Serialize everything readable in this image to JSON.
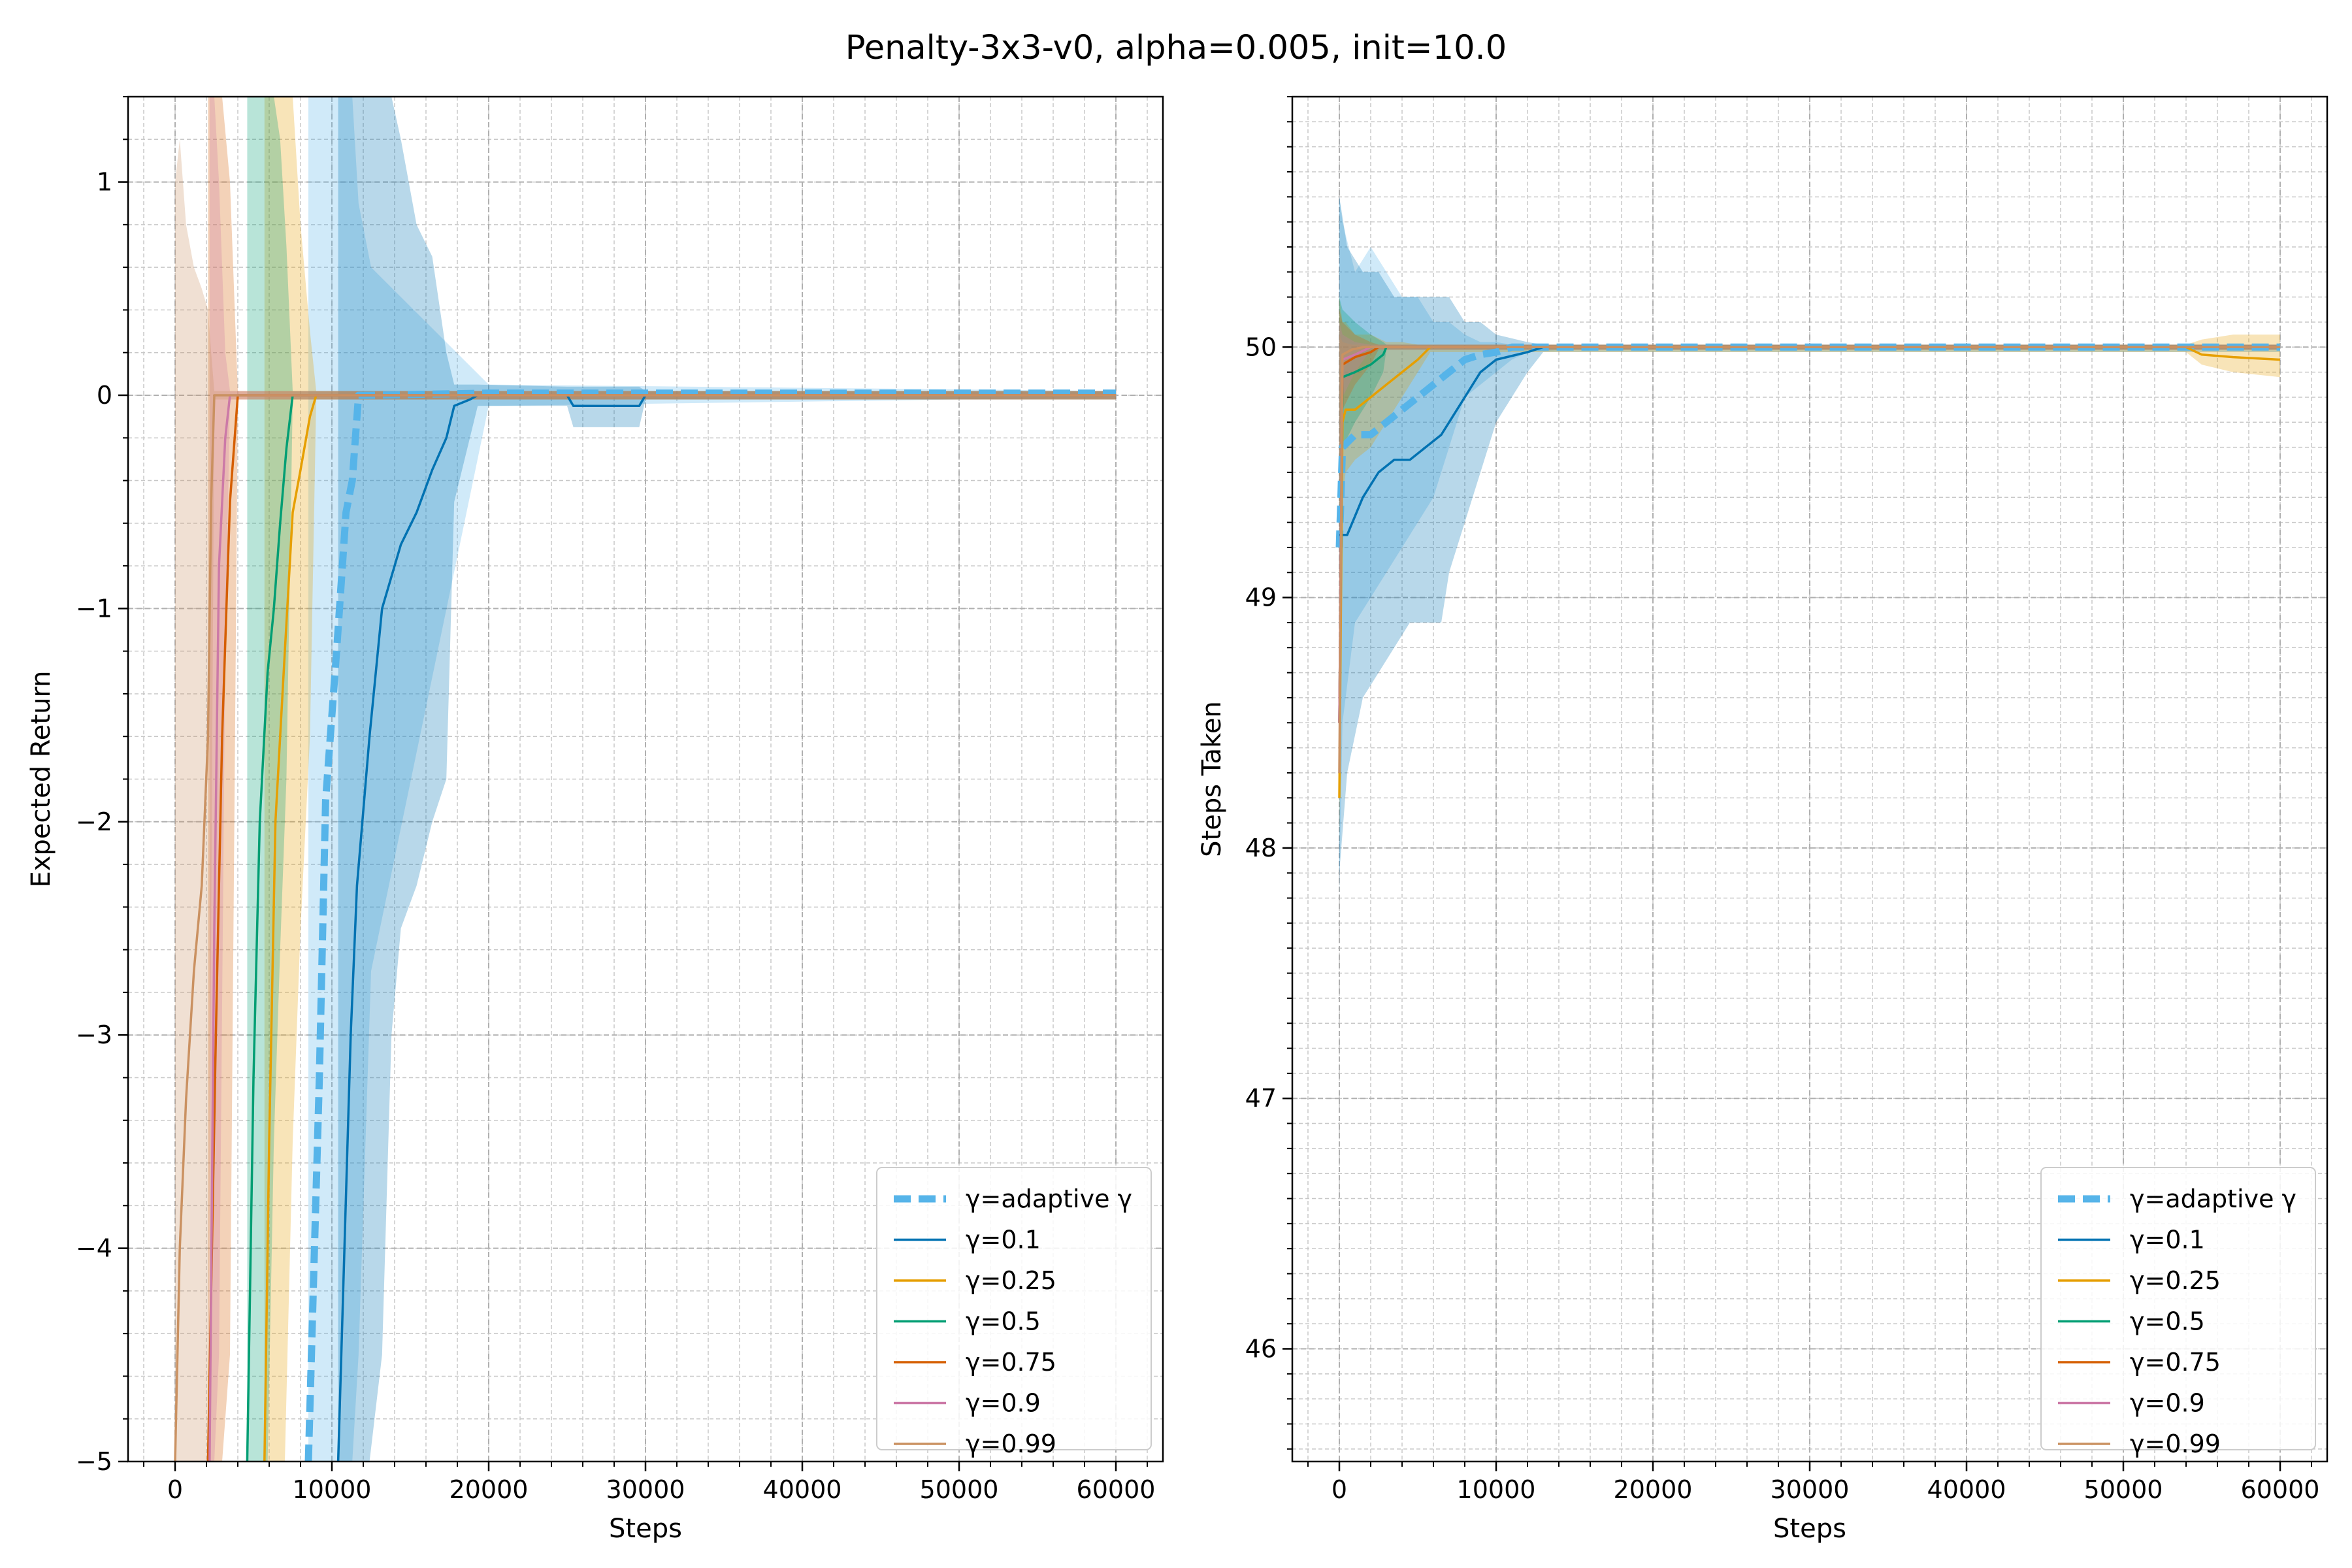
{
  "figure": {
    "title": "Penalty-3x3-v0, alpha=0.005, init=10.0"
  },
  "chart_data": [
    {
      "type": "line",
      "title": "",
      "xlabel": "Steps",
      "ylabel": "Expected Return",
      "xlim": [
        -3000,
        63000
      ],
      "ylim": [
        -5,
        1.4
      ],
      "xticks": [
        0,
        10000,
        20000,
        30000,
        40000,
        50000,
        60000
      ],
      "xtick_labels": [
        "0",
        "10000",
        "20000",
        "30000",
        "40000",
        "50000",
        "60000"
      ],
      "yticks": [
        -5,
        -4,
        -3,
        -2,
        -1,
        0,
        1
      ],
      "ytick_labels": [
        "−5",
        "−4",
        "−3",
        "−2",
        "−1",
        "0",
        "1"
      ],
      "grid": true,
      "legend_position": "lower-right",
      "series": [
        {
          "name": "γ=adaptive γ",
          "color": "#56b4e9",
          "dashed": true,
          "x": [
            8500,
            9200,
            9600,
            10300,
            10900,
            11300,
            11700,
            12500,
            20000,
            60000
          ],
          "y": [
            -5,
            -3.2,
            -1.9,
            -1.2,
            -0.55,
            -0.4,
            0,
            0,
            0.01,
            0.01
          ],
          "band_upper": [
            1.4,
            1.4,
            1.4,
            1.4,
            1.4,
            1.4,
            0.9,
            0.6,
            0.05,
            0.02
          ],
          "band_lower": [
            -5,
            -5,
            -5,
            -5,
            -5,
            -5,
            -4.5,
            -2.7,
            -0.05,
            -0.01
          ]
        },
        {
          "name": "γ=0.1",
          "color": "#0072b2",
          "dashed": false,
          "x": [
            10400,
            11200,
            11600,
            12400,
            13200,
            13800,
            14400,
            15400,
            16400,
            17300,
            17800,
            18800,
            19300,
            25000,
            25400,
            29600,
            30000,
            60000
          ],
          "y": [
            -5,
            -3,
            -2.3,
            -1.6,
            -1.0,
            -0.85,
            -0.7,
            -0.55,
            -0.35,
            -0.2,
            -0.05,
            -0.02,
            0,
            0,
            -0.05,
            -0.05,
            0,
            0
          ],
          "band_upper": [
            1.4,
            1.4,
            1.4,
            1.4,
            1.4,
            1.4,
            1.2,
            0.8,
            0.65,
            0.2,
            0.05,
            0.05,
            0.05,
            0.04,
            0.04,
            0.04,
            0.02,
            0.02
          ],
          "band_lower": [
            -5,
            -5,
            -5,
            -5,
            -4.5,
            -3.0,
            -2.5,
            -2.3,
            -2.0,
            -1.8,
            -0.5,
            -0.2,
            -0.05,
            -0.05,
            -0.15,
            -0.15,
            -0.02,
            -0.02
          ]
        },
        {
          "name": "γ=0.25",
          "color": "#e69f00",
          "dashed": false,
          "x": [
            5700,
            6000,
            6400,
            7000,
            7500,
            8000,
            8600,
            9000,
            60000
          ],
          "y": [
            -5,
            -3.5,
            -2.0,
            -1.2,
            -0.55,
            -0.35,
            -0.1,
            0,
            0
          ],
          "band_upper": [
            1.4,
            1.4,
            1.4,
            1.4,
            1.4,
            0.8,
            0.3,
            0.02,
            0.02
          ],
          "band_lower": [
            -5,
            -5,
            -5,
            -5,
            -3.5,
            -2.5,
            -1.6,
            -0.02,
            -0.02
          ]
        },
        {
          "name": "γ=0.5",
          "color": "#009e73",
          "dashed": false,
          "x": [
            4600,
            5000,
            5400,
            5900,
            6300,
            6700,
            7100,
            7500,
            60000
          ],
          "y": [
            -5,
            -3.2,
            -2.0,
            -1.3,
            -1.0,
            -0.6,
            -0.25,
            0,
            0
          ],
          "band_upper": [
            1.4,
            1.4,
            1.4,
            1.4,
            1.4,
            1.2,
            0.7,
            0.02,
            0.02
          ],
          "band_lower": [
            -5,
            -5,
            -5,
            -5,
            -3.5,
            -2.6,
            -1.8,
            -0.02,
            -0.02
          ]
        },
        {
          "name": "γ=0.75",
          "color": "#d55e00",
          "dashed": false,
          "x": [
            2100,
            2600,
            3000,
            3500,
            4000,
            60000
          ],
          "y": [
            -5,
            -3.0,
            -1.6,
            -0.5,
            0,
            0
          ],
          "band_upper": [
            1.4,
            1.4,
            1.4,
            1.0,
            0.02,
            0.02
          ],
          "band_lower": [
            -5,
            -5,
            -5,
            -4.5,
            -0.02,
            -0.02
          ]
        },
        {
          "name": "γ=0.9",
          "color": "#cc79a7",
          "dashed": false,
          "x": [
            2200,
            2500,
            2800,
            3200,
            3500,
            60000
          ],
          "y": [
            -5,
            -2.5,
            -0.8,
            -0.2,
            0,
            0
          ],
          "band_upper": [
            1.4,
            1.4,
            1.0,
            0.2,
            0.02,
            0.02
          ],
          "band_lower": [
            -5,
            -5,
            -4.5,
            -1.2,
            -0.02,
            -0.02
          ]
        },
        {
          "name": "γ=0.99",
          "color": "#ca9161",
          "dashed": false,
          "x": [
            0,
            300,
            700,
            1200,
            1700,
            2100,
            2300,
            2500,
            60000
          ],
          "y": [
            -5,
            -4.0,
            -3.3,
            -2.7,
            -2.3,
            -1.6,
            -0.5,
            0,
            0
          ],
          "band_upper": [
            1.0,
            1.2,
            0.8,
            0.6,
            0.5,
            0.4,
            0.2,
            0.02,
            0.02
          ],
          "band_lower": [
            -5,
            -5,
            -5,
            -5,
            -5,
            -5,
            -2.5,
            -0.02,
            -0.02
          ]
        }
      ]
    },
    {
      "type": "line",
      "title": "",
      "xlabel": "Steps",
      "ylabel": "Steps Taken",
      "xlim": [
        -3000,
        63000
      ],
      "ylim": [
        45.55,
        51.0
      ],
      "xticks": [
        0,
        10000,
        20000,
        30000,
        40000,
        50000,
        60000
      ],
      "xtick_labels": [
        "0",
        "10000",
        "20000",
        "30000",
        "40000",
        "50000",
        "60000"
      ],
      "yticks": [
        46,
        47,
        48,
        49,
        50
      ],
      "ytick_labels": [
        "46",
        "47",
        "48",
        "49",
        "50"
      ],
      "grid": true,
      "legend_position": "lower-right",
      "series": [
        {
          "name": "γ=adaptive γ",
          "color": "#56b4e9",
          "dashed": true,
          "x": [
            0,
            200,
            1000,
            2000,
            3000,
            4000,
            5000,
            6000,
            7000,
            8000,
            9000,
            10000,
            11000,
            12000,
            15000,
            20000,
            60000
          ],
          "y": [
            49.2,
            49.6,
            49.65,
            49.65,
            49.7,
            49.75,
            49.8,
            49.85,
            49.9,
            49.95,
            49.97,
            49.98,
            50.0,
            50.0,
            50.0,
            50.0,
            50.0
          ],
          "band_upper": [
            50.6,
            50.5,
            50.3,
            50.4,
            50.3,
            50.2,
            50.2,
            50.1,
            50.1,
            50.05,
            50.02,
            50.02,
            50.01,
            50.01,
            50.01,
            50.01,
            50.01
          ],
          "band_lower": [
            47.8,
            48.5,
            48.9,
            49.0,
            49.1,
            49.2,
            49.3,
            49.4,
            49.6,
            49.8,
            49.85,
            49.9,
            49.95,
            49.98,
            49.99,
            49.99,
            49.99
          ]
        },
        {
          "name": "γ=0.1",
          "color": "#0072b2",
          "dashed": false,
          "x": [
            0,
            500,
            1500,
            2500,
            3500,
            4500,
            5500,
            6500,
            7000,
            8000,
            9000,
            10000,
            12000,
            13000,
            60000
          ],
          "y": [
            49.25,
            49.25,
            49.4,
            49.5,
            49.55,
            49.55,
            49.6,
            49.65,
            49.7,
            49.8,
            49.9,
            49.95,
            49.98,
            50.0,
            50.0
          ],
          "band_upper": [
            50.6,
            50.4,
            50.3,
            50.3,
            50.2,
            50.2,
            50.2,
            50.2,
            50.2,
            50.1,
            50.1,
            50.05,
            50.02,
            50.01,
            50.01
          ],
          "band_lower": [
            47.9,
            48.3,
            48.6,
            48.7,
            48.8,
            48.9,
            48.9,
            48.9,
            49.1,
            49.3,
            49.5,
            49.7,
            49.9,
            49.98,
            49.98
          ]
        },
        {
          "name": "γ=0.25",
          "color": "#e69f00",
          "dashed": false,
          "x": [
            0,
            200,
            400,
            1000,
            2000,
            3000,
            4000,
            5000,
            5800,
            6000,
            54000,
            55000,
            57000,
            60000
          ],
          "y": [
            48.2,
            49.7,
            49.75,
            49.75,
            49.8,
            49.85,
            49.9,
            49.95,
            50.0,
            50.0,
            50.0,
            49.97,
            49.96,
            49.95
          ],
          "band_upper": [
            50.2,
            50.1,
            50.1,
            50.05,
            50.05,
            50.02,
            50.02,
            50.01,
            50.01,
            50.01,
            50.01,
            50.03,
            50.05,
            50.05
          ],
          "band_lower": [
            48.0,
            49.4,
            49.5,
            49.55,
            49.6,
            49.7,
            49.8,
            49.9,
            49.98,
            49.98,
            49.98,
            49.93,
            49.9,
            49.88
          ]
        },
        {
          "name": "γ=0.5",
          "color": "#009e73",
          "dashed": false,
          "x": [
            0,
            200,
            1000,
            2000,
            2800,
            3000,
            60000
          ],
          "y": [
            48.5,
            49.88,
            49.9,
            49.93,
            49.97,
            50.0,
            50.0
          ],
          "band_upper": [
            50.2,
            50.15,
            50.1,
            50.05,
            50.02,
            50.01,
            50.01
          ],
          "band_lower": [
            48.4,
            49.6,
            49.7,
            49.8,
            49.9,
            49.99,
            49.99
          ]
        },
        {
          "name": "γ=0.75",
          "color": "#d55e00",
          "dashed": false,
          "x": [
            0,
            200,
            1000,
            2000,
            2500,
            60000
          ],
          "y": [
            48.5,
            49.93,
            49.96,
            49.98,
            50.0,
            50.0
          ],
          "band_upper": [
            50.15,
            50.1,
            50.05,
            50.02,
            50.01,
            50.01
          ],
          "band_lower": [
            48.4,
            49.75,
            49.85,
            49.93,
            49.99,
            49.99
          ]
        },
        {
          "name": "γ=0.9",
          "color": "#cc79a7",
          "dashed": false,
          "x": [
            0,
            200,
            1000,
            2000,
            60000
          ],
          "y": [
            48.5,
            49.95,
            49.97,
            50.0,
            50.0
          ],
          "band_upper": [
            50.1,
            50.05,
            50.02,
            50.01,
            50.01
          ],
          "band_lower": [
            48.4,
            49.8,
            49.9,
            49.99,
            49.99
          ]
        },
        {
          "name": "γ=0.99",
          "color": "#ca9161",
          "dashed": false,
          "x": [
            0,
            200,
            800,
            1500,
            60000
          ],
          "y": [
            48.3,
            49.97,
            49.99,
            50.0,
            50.0
          ],
          "band_upper": [
            50.05,
            50.02,
            50.01,
            50.01,
            50.01
          ],
          "band_lower": [
            48.2,
            49.9,
            49.97,
            49.99,
            49.99
          ]
        }
      ]
    }
  ]
}
